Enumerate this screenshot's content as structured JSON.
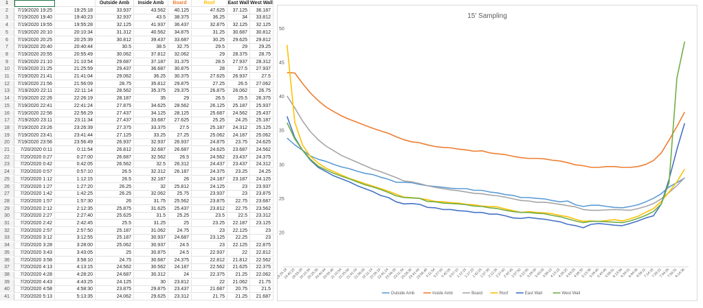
{
  "sheet": {
    "headers": [
      "",
      "",
      "Outside Amb",
      "Inside Amb",
      "Board",
      "Roof",
      "East Wall",
      "West Wall"
    ],
    "header_colors": [
      "",
      "",
      "#222222",
      "#222222",
      "#ED7D31",
      "#FFC000",
      "#222222",
      "#222222"
    ],
    "row_numbers": [
      "1",
      "2",
      "3",
      "4",
      "5",
      "6",
      "7",
      "8",
      "9",
      "10",
      "11",
      "12",
      "13",
      "14",
      "15",
      "16",
      "17",
      "18",
      "19",
      "20",
      "21",
      "22",
      "23",
      "24",
      "25",
      "26",
      "27",
      "28",
      "29",
      "30",
      "31",
      "32",
      "33",
      "34",
      "35",
      "36",
      "37",
      "38",
      "39",
      "40",
      "41"
    ],
    "rows": [
      [
        "7/19/2020 19:25",
        "19:25:18",
        "33.937",
        "43.562",
        "40.125",
        "47.625",
        "37.125",
        "36.187"
      ],
      [
        "7/19/2020 19:40",
        "19:40:23",
        "32.937",
        "43.5",
        "38.375",
        "36.25",
        "34",
        "33.812"
      ],
      [
        "7/19/2020 19:55",
        "19:55:28",
        "32.125",
        "41.937",
        "36.437",
        "32.875",
        "32.125",
        "32.125"
      ],
      [
        "7/19/2020 20:10",
        "20:10:34",
        "31.312",
        "40.562",
        "34.875",
        "31.25",
        "30.687",
        "30.812"
      ],
      [
        "7/19/2020 20:25",
        "20:25:39",
        "30.812",
        "39.437",
        "33.687",
        "30.25",
        "29.625",
        "29.812"
      ],
      [
        "7/19/2020 20:40",
        "20:40:44",
        "30.5",
        "38.5",
        "32.75",
        "29.5",
        "29",
        "29.25"
      ],
      [
        "7/19/2020 20:55",
        "20:55:49",
        "30.062",
        "37.812",
        "32.062",
        "29",
        "28.375",
        "28.75"
      ],
      [
        "7/19/2020 21:10",
        "21:10:54",
        "29.687",
        "37.187",
        "31.375",
        "28.5",
        "27.937",
        "28.312"
      ],
      [
        "7/19/2020 21:25",
        "21:25:59",
        "29.437",
        "36.687",
        "30.875",
        "28",
        "27.5",
        "27.937"
      ],
      [
        "7/19/2020 21:41",
        "21:41:04",
        "29.062",
        "36.25",
        "30.375",
        "27.625",
        "26.937",
        "27.5"
      ],
      [
        "7/19/2020 21:56",
        "21:56:09",
        "28.75",
        "35.812",
        "29.875",
        "27.25",
        "26.5",
        "27.062"
      ],
      [
        "7/19/2020 22:11",
        "22:11:14",
        "28.562",
        "35.375",
        "29.375",
        "26.875",
        "26.062",
        "26.75"
      ],
      [
        "7/19/2020 22:26",
        "22:26:19",
        "28.187",
        "35",
        "29",
        "26.5",
        "25.5",
        "26.375"
      ],
      [
        "7/19/2020 22:41",
        "22:41:24",
        "27.875",
        "34.625",
        "28.562",
        "26.125",
        "25.187",
        "25.937"
      ],
      [
        "7/19/2020 22:56",
        "22:56:29",
        "27.437",
        "34.125",
        "28.125",
        "25.687",
        "24.562",
        "25.437"
      ],
      [
        "7/19/2020 23:11",
        "23:11:34",
        "27.437",
        "33.687",
        "27.625",
        "25.25",
        "24.25",
        "25.187"
      ],
      [
        "7/19/2020 23:26",
        "23:26:39",
        "27.375",
        "33.375",
        "27.5",
        "25.187",
        "24.312",
        "25.125"
      ],
      [
        "7/19/2020 23:41",
        "23:41:44",
        "27.125",
        "33.25",
        "27.25",
        "25.062",
        "24.187",
        "25.062"
      ],
      [
        "7/19/2020 23:56",
        "23:56:49",
        "26.937",
        "32.937",
        "26.937",
        "24.875",
        "23.75",
        "24.625"
      ],
      [
        "7/20/2020 0:11",
        "0:11:54",
        "26.812",
        "32.687",
        "26.687",
        "24.625",
        "23.687",
        "24.562"
      ],
      [
        "7/20/2020 0:27",
        "0:27:00",
        "26.687",
        "32.562",
        "26.5",
        "24.562",
        "23.437",
        "24.375"
      ],
      [
        "7/20/2020 0:42",
        "0:42:05",
        "26.562",
        "32.5",
        "26.312",
        "24.437",
        "23.437",
        "24.312"
      ],
      [
        "7/20/2020 0:57",
        "0:57:10",
        "26.5",
        "32.312",
        "26.187",
        "24.375",
        "23.25",
        "24.25"
      ],
      [
        "7/20/2020 1:12",
        "1:12:15",
        "26.5",
        "32.187",
        "26",
        "24.187",
        "23.187",
        "24.125"
      ],
      [
        "7/20/2020 1:27",
        "1:27:20",
        "26.25",
        "32",
        "25.812",
        "24.125",
        "23",
        "23.937"
      ],
      [
        "7/20/2020 1:42",
        "1:42:25",
        "26.25",
        "32.062",
        "25.75",
        "23.937",
        "23",
        "23.875"
      ],
      [
        "7/20/2020 1:57",
        "1:57:30",
        "26",
        "31.75",
        "25.562",
        "23.875",
        "22.75",
        "23.687"
      ],
      [
        "7/20/2020 2:12",
        "2:12:35",
        "25.875",
        "31.625",
        "25.437",
        "23.812",
        "22.75",
        "23.562"
      ],
      [
        "7/20/2020 2:27",
        "2:27:40",
        "25.625",
        "31.5",
        "25.25",
        "23.5",
        "22.5",
        "23.312"
      ],
      [
        "7/20/2020 2:42",
        "2:42:45",
        "25.5",
        "31.25",
        "25",
        "23.25",
        "22.187",
        "23.125"
      ],
      [
        "7/20/2020 2:57",
        "2:57:50",
        "25.187",
        "31.062",
        "24.75",
        "23",
        "22.125",
        "23"
      ],
      [
        "7/20/2020 3:12",
        "3:12:55",
        "25.187",
        "30.937",
        "24.687",
        "23.125",
        "22.25",
        "23"
      ],
      [
        "7/20/2020 3:28",
        "3:28:00",
        "25.062",
        "30.937",
        "24.5",
        "23",
        "22.125",
        "22.875"
      ],
      [
        "7/20/2020 3:43",
        "3:43:05",
        "25",
        "30.875",
        "24.5",
        "22.937",
        "22",
        "22.812"
      ],
      [
        "7/20/2020 3:58",
        "3:58:10",
        "24.75",
        "30.687",
        "24.375",
        "22.812",
        "21.812",
        "22.562"
      ],
      [
        "7/20/2020 4:13",
        "4:13:15",
        "24.562",
        "30.562",
        "24.187",
        "22.562",
        "21.625",
        "22.375"
      ],
      [
        "7/20/2020 4:28",
        "4:28:20",
        "24.687",
        "30.312",
        "24",
        "22.375",
        "21.25",
        "22.062"
      ],
      [
        "7/20/2020 4:43",
        "4:43:25",
        "24.125",
        "30",
        "23.812",
        "22",
        "21.062",
        "21.75"
      ],
      [
        "7/20/2020 4:58",
        "4:58:30",
        "23.875",
        "29.875",
        "23.437",
        "21.687",
        "20.75",
        "21.5"
      ],
      [
        "7/20/2020 5:13",
        "5:13:35",
        "24.062",
        "29.625",
        "23.312",
        "21.75",
        "21.25",
        "21.687"
      ]
    ]
  },
  "chart_data": {
    "type": "line",
    "title": "15' Sampling",
    "xlabel": "",
    "ylabel": "",
    "ylim": [
      15,
      50
    ],
    "yticks": [
      "20",
      "25",
      "30",
      "35",
      "40",
      "45",
      "50"
    ],
    "x_tick_labels": [
      "19:25:18",
      "19:40:23",
      "19:55:28",
      "20:10:34",
      "20:25:39",
      "20:40:44",
      "20:55:49",
      "21:10:54",
      "21:25:59",
      "21:41:04",
      "21:56:09",
      "22:11:14",
      "22:26:19",
      "22:41:24",
      "22:56:29",
      "23:11:34",
      "23:26:39",
      "23:41:44",
      "23:56:49",
      "0:11:54",
      "0:27:00",
      "0:42:05",
      "0:57:10",
      "1:12:15",
      "1:27:20",
      "1:42:25",
      "1:57:30",
      "2:12:35",
      "2:27:40",
      "2:42:45",
      "2:57:50",
      "3:12:55",
      "3:28:00",
      "3:43:05",
      "3:58:10",
      "4:13:15",
      "4:28:20",
      "4:43:25",
      "4:58:30",
      "5:13:35",
      "5:28:40",
      "5:43:45",
      "5:58:51",
      "6:13:56",
      "6:29:01",
      "6:44:06",
      "6:59:11",
      "7:14:16",
      "7:29:21",
      "7:44:26",
      "7:59:31",
      "8:14:36"
    ],
    "legend_position": "bottom",
    "series": [
      {
        "name": "Outside Amb",
        "color": "#5B9BD5",
        "values": [
          33.937,
          32.937,
          32.125,
          31.312,
          30.812,
          30.5,
          30.062,
          29.687,
          29.437,
          29.062,
          28.75,
          28.562,
          28.187,
          27.875,
          27.437,
          27.437,
          27.375,
          27.125,
          26.937,
          26.812,
          26.687,
          26.562,
          26.5,
          26.5,
          26.25,
          26.25,
          26,
          25.875,
          25.625,
          25.5,
          25.187,
          25.187,
          25.062,
          25,
          24.75,
          24.562,
          24.687,
          24.125,
          23.875,
          24.062,
          24.062,
          23.875,
          23.75,
          23.687,
          23.875,
          24.125,
          24.562,
          25.062,
          25.75,
          26.75,
          27.375,
          28.062
        ]
      },
      {
        "name": "Inside Amb",
        "color": "#ED7D31",
        "values": [
          43.562,
          43.5,
          41.937,
          40.562,
          39.437,
          38.5,
          37.812,
          37.187,
          36.687,
          36.25,
          35.812,
          35.375,
          35,
          34.625,
          34.125,
          33.687,
          33.375,
          33.25,
          32.937,
          32.687,
          32.562,
          32.5,
          32.312,
          32.187,
          32,
          32.062,
          31.75,
          31.625,
          31.5,
          31.25,
          31.062,
          30.937,
          30.937,
          30.875,
          30.687,
          30.562,
          30.312,
          30,
          29.875,
          29.625,
          29.625,
          29.75,
          29.75,
          29.625,
          29.625,
          29.75,
          30.062,
          30.625,
          31.75,
          33.625,
          35.625,
          37.75
        ]
      },
      {
        "name": "Board",
        "color": "#A5A5A5",
        "values": [
          40.125,
          38.375,
          36.437,
          34.875,
          33.687,
          32.75,
          32.062,
          31.375,
          30.875,
          30.375,
          29.875,
          29.375,
          29,
          28.562,
          28.125,
          27.625,
          27.5,
          27.25,
          26.937,
          26.687,
          26.5,
          26.312,
          26.187,
          26,
          25.812,
          25.75,
          25.562,
          25.437,
          25.25,
          25,
          24.75,
          24.687,
          24.5,
          24.5,
          24.375,
          24.187,
          24,
          23.812,
          23.437,
          23.312,
          23.312,
          23.375,
          23.437,
          23.375,
          23.312,
          23.562,
          23.875,
          24.312,
          25,
          25.937,
          26.937,
          28.125
        ]
      },
      {
        "name": "Roof",
        "color": "#FFC000",
        "values": [
          47.625,
          36.25,
          32.875,
          31.25,
          30.25,
          29.5,
          29,
          28.5,
          28,
          27.625,
          27.25,
          26.875,
          26.5,
          26.125,
          25.687,
          25.25,
          25.187,
          25.062,
          24.875,
          24.625,
          24.562,
          24.437,
          24.375,
          24.187,
          24.125,
          23.937,
          23.875,
          23.812,
          23.5,
          23.25,
          23,
          23.125,
          23,
          22.937,
          22.812,
          22.562,
          22.375,
          22,
          21.687,
          21.75,
          21.687,
          21.812,
          21.937,
          21.75,
          22.062,
          22.437,
          23,
          23.562,
          24.625,
          26,
          27.5,
          29.375
        ]
      },
      {
        "name": "East Wall",
        "color": "#4472C4",
        "values": [
          37.125,
          34,
          32.125,
          30.687,
          29.625,
          29,
          28.375,
          27.937,
          27.5,
          26.937,
          26.5,
          26.062,
          25.5,
          25.187,
          24.562,
          24.25,
          24.312,
          24.187,
          23.75,
          23.687,
          23.437,
          23.437,
          23.25,
          23.187,
          23,
          23,
          22.75,
          22.75,
          22.5,
          22.187,
          22.125,
          22.25,
          22.125,
          22,
          21.812,
          21.625,
          21.25,
          21.062,
          20.75,
          21.25,
          21.375,
          21.25,
          21.125,
          21.062,
          21.375,
          21.75,
          22.187,
          22.5,
          24.25,
          27.875,
          32.25,
          36.125
        ]
      },
      {
        "name": "West Wall",
        "color": "#70AD47",
        "values": [
          36.187,
          33.812,
          32.125,
          30.812,
          29.812,
          29.25,
          28.75,
          28.312,
          27.937,
          27.5,
          27.062,
          26.75,
          26.375,
          25.937,
          25.437,
          25.187,
          25.125,
          25.062,
          24.625,
          24.562,
          24.375,
          24.312,
          24.25,
          24.125,
          23.937,
          23.875,
          23.687,
          23.562,
          23.312,
          23.125,
          23,
          23,
          22.875,
          22.812,
          22.562,
          22.375,
          22.062,
          21.75,
          21.5,
          21.687,
          21.687,
          21.625,
          21.562,
          21.5,
          21.75,
          22.125,
          22.562,
          23.125,
          24.25,
          27.375,
          42.75,
          48.125
        ]
      }
    ]
  }
}
